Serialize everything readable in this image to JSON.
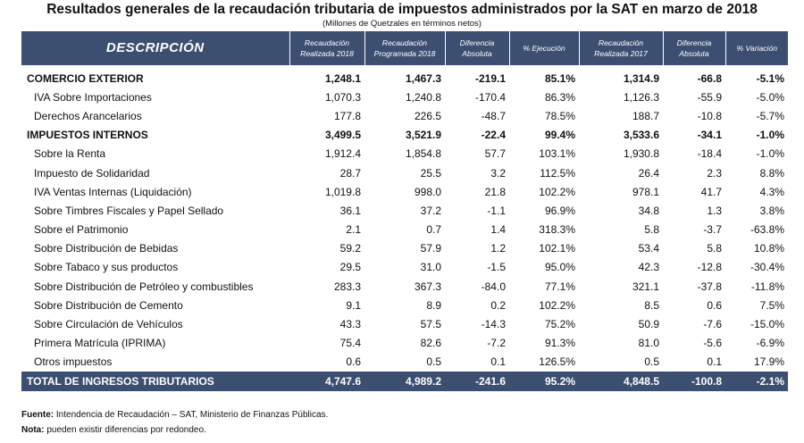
{
  "title": "Resultados generales de la recaudación tributaria de impuestos administrados por la SAT en marzo de 2018",
  "subtitle": "(Millones de Quetzales en términos netos)",
  "headers": {
    "descripcion": "DESCRIPCIÓN",
    "rec2018_1": "Recaudación",
    "rec2018_2": "Realizada 2018",
    "prog2018_1": "Recaudación",
    "prog2018_2": "Programada 2018",
    "dif1_1": "Diferencia",
    "dif1_2": "Absoluta",
    "ejec": "% Ejecución",
    "rec2017_1": "Recaudación",
    "rec2017_2": "Realizada 2017",
    "dif2_1": "Diferencia",
    "dif2_2": "Absoluta",
    "var": "% Variación"
  },
  "rows": [
    {
      "desc": "COMERCIO EXTERIOR",
      "r18": "1,248.1",
      "p18": "1,467.3",
      "d1": "-219.1",
      "ej": "85.1%",
      "r17": "1,314.9",
      "d2": "-66.8",
      "v": "-5.1%"
    },
    {
      "desc": "IVA Sobre Importaciones",
      "r18": "1,070.3",
      "p18": "1,240.8",
      "d1": "-170.4",
      "ej": "86.3%",
      "r17": "1,126.3",
      "d2": "-55.9",
      "v": "-5.0%"
    },
    {
      "desc": "Derechos Arancelarios",
      "r18": "177.8",
      "p18": "226.5",
      "d1": "-48.7",
      "ej": "78.5%",
      "r17": "188.7",
      "d2": "-10.8",
      "v": "-5.7%"
    },
    {
      "desc": "IMPUESTOS INTERNOS",
      "r18": "3,499.5",
      "p18": "3,521.9",
      "d1": "-22.4",
      "ej": "99.4%",
      "r17": "3,533.6",
      "d2": "-34.1",
      "v": "-1.0%"
    },
    {
      "desc": "Sobre la Renta",
      "r18": "1,912.4",
      "p18": "1,854.8",
      "d1": "57.7",
      "ej": "103.1%",
      "r17": "1,930.8",
      "d2": "-18.4",
      "v": "-1.0%"
    },
    {
      "desc": "Impuesto de Solidaridad",
      "r18": "28.7",
      "p18": "25.5",
      "d1": "3.2",
      "ej": "112.5%",
      "r17": "26.4",
      "d2": "2.3",
      "v": "8.8%"
    },
    {
      "desc": "IVA Ventas Internas (Liquidación)",
      "r18": "1,019.8",
      "p18": "998.0",
      "d1": "21.8",
      "ej": "102.2%",
      "r17": "978.1",
      "d2": "41.7",
      "v": "4.3%"
    },
    {
      "desc": "Sobre Timbres Fiscales y Papel Sellado",
      "r18": "36.1",
      "p18": "37.2",
      "d1": "-1.1",
      "ej": "96.9%",
      "r17": "34.8",
      "d2": "1.3",
      "v": "3.8%"
    },
    {
      "desc": "Sobre el Patrimonio",
      "r18": "2.1",
      "p18": "0.7",
      "d1": "1.4",
      "ej": "318.3%",
      "r17": "5.8",
      "d2": "-3.7",
      "v": "-63.8%"
    },
    {
      "desc": "Sobre Distribución de Bebidas",
      "r18": "59.2",
      "p18": "57.9",
      "d1": "1.2",
      "ej": "102.1%",
      "r17": "53.4",
      "d2": "5.8",
      "v": "10.8%"
    },
    {
      "desc": "Sobre Tabaco y sus productos",
      "r18": "29.5",
      "p18": "31.0",
      "d1": "-1.5",
      "ej": "95.0%",
      "r17": "42.3",
      "d2": "-12.8",
      "v": "-30.4%"
    },
    {
      "desc": "Sobre Distribución de Petróleo y combustibles",
      "r18": "283.3",
      "p18": "367.3",
      "d1": "-84.0",
      "ej": "77.1%",
      "r17": "321.1",
      "d2": "-37.8",
      "v": "-11.8%"
    },
    {
      "desc": "Sobre Distribución de Cemento",
      "r18": "9.1",
      "p18": "8.9",
      "d1": "0.2",
      "ej": "102.2%",
      "r17": "8.5",
      "d2": "0.6",
      "v": "7.5%"
    },
    {
      "desc": "Sobre Circulación de Vehículos",
      "r18": "43.3",
      "p18": "57.5",
      "d1": "-14.3",
      "ej": "75.2%",
      "r17": "50.9",
      "d2": "-7.6",
      "v": "-15.0%"
    },
    {
      "desc": "Primera Matrícula (IPRIMA)",
      "r18": "75.4",
      "p18": "82.6",
      "d1": "-7.2",
      "ej": "91.3%",
      "r17": "81.0",
      "d2": "-5.6",
      "v": "-6.9%"
    },
    {
      "desc": "Otros impuestos",
      "r18": "0.6",
      "p18": "0.5",
      "d1": "0.1",
      "ej": "126.5%",
      "r17": "0.5",
      "d2": "0.1",
      "v": "17.9%"
    }
  ],
  "total": {
    "desc": "TOTAL DE INGRESOS TRIBUTARIOS",
    "r18": "4,747.6",
    "p18": "4,989.2",
    "d1": "-241.6",
    "ej": "95.2%",
    "r17": "4,848.5",
    "d2": "-100.8",
    "v": "-2.1%"
  },
  "footnotes": {
    "fuente_label": "Fuente:",
    "fuente_text": " Intendencia de Recaudación – SAT, Ministerio de Finanzas Públicas.",
    "nota_label": "Nota:",
    "nota_text": " pueden existir diferencias por redondeo."
  }
}
